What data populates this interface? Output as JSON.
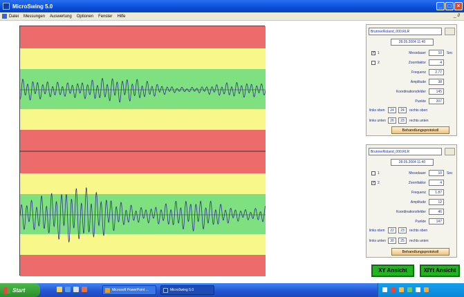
{
  "window": {
    "title": "MicroSwing 5.0"
  },
  "menu": [
    "Datei",
    "Messungen",
    "Auswertung",
    "Optionen",
    "Fenster",
    "Hilfe"
  ],
  "menu_right": "_ ∂",
  "controls": {
    "minimize": "_",
    "maximize": "□",
    "close": "×"
  },
  "colors": {
    "red": "#ee6b6b",
    "yellow": "#f7f78a",
    "green": "#7fe07f",
    "trace": "#2c2f8a",
    "title_blue": "#0a4fd8",
    "button_green": "#22b222"
  },
  "panel1": {
    "file": "BrunnerRoland_000.RLR",
    "date": "28.05.2004 11:40",
    "cb1_label": "1",
    "cb1_checked": "✓",
    "cb2_label": "2",
    "cb2_checked": "",
    "messdauer_label": "Messdauer",
    "messdauer": "10",
    "messdauer_unit": "Sec",
    "zoom_label": "Zoomfaktor",
    "zoom": "4",
    "frequenz_label": "Frequenz",
    "frequenz": "2.77",
    "amplitude_label": "Amplitude",
    "amplitude": "38",
    "koord_label": "Koordinationsfelder",
    "koord": "145",
    "punkte_label": "Punkte",
    "punkte": "207",
    "links_oben_label": "links oben",
    "links_oben": "24",
    "rechts_oben": "24",
    "rechts_oben_label": "rechts oben",
    "links_unten_label": "links unten",
    "links_unten": "26",
    "rechts_unten": "23",
    "rechts_unten_label": "rechts unten",
    "button": "Behandlungsprotokoll"
  },
  "panel2": {
    "file": "BrunnerRoland_000.RLR",
    "date": "28.05.2004 11:40",
    "cb1_label": "1",
    "cb1_checked": "",
    "cb2_label": "2",
    "cb2_checked": "✓",
    "messdauer_label": "Messdauer",
    "messdauer": "10",
    "messdauer_unit": "Sec",
    "zoom_label": "Zoomfaktor",
    "zoom": "4",
    "frequenz_label": "Frequenz",
    "frequenz": "1.87",
    "amplitude_label": "Amplitude",
    "amplitude": "12",
    "koord_label": "Koordinationsfelder",
    "koord": "46",
    "punkte_label": "Punkte",
    "punkte": "147",
    "links_oben_label": "links oben",
    "links_oben": "22",
    "rechts_oben": "23",
    "rechts_oben_label": "rechts oben",
    "links_unten_label": "links unten",
    "links_unten": "30",
    "rechts_unten": "25",
    "rechts_unten_label": "rechts unten",
    "button": "Behandlungsprotokoll"
  },
  "buttons": {
    "xy": "XY Ansicht",
    "xyt": "XIYt Ansicht"
  },
  "taskbar": {
    "start": "Start",
    "task1": "Microsoft PowerPoint ...",
    "task2": "MicroSwing 5.0"
  }
}
